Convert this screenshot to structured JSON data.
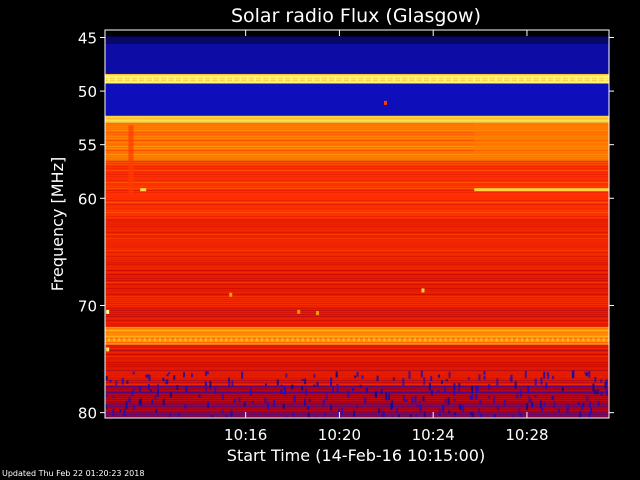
{
  "chart_data": {
    "type": "heatmap",
    "title": "Solar radio Flux (Glasgow)",
    "xlabel": "Start Time (14-Feb-16 10:15:00)",
    "ylabel": "Frequency [MHz]",
    "x_range_minutes": [
      10.0,
      31.5
    ],
    "x_ticks": [
      {
        "value": 16,
        "label": "10:16"
      },
      {
        "value": 20,
        "label": "10:20"
      },
      {
        "value": 24,
        "label": "10:24"
      },
      {
        "value": 28,
        "label": "10:28"
      }
    ],
    "y_range_mhz": [
      44.3,
      80.5
    ],
    "y_ticks": [
      {
        "value": 45,
        "label": "45"
      },
      {
        "value": 50,
        "label": "50"
      },
      {
        "value": 55,
        "label": "55"
      },
      {
        "value": 60,
        "label": "60"
      },
      {
        "value": 70,
        "label": "70"
      },
      {
        "value": 80,
        "label": "80"
      }
    ],
    "colormap": [
      "#000000",
      "#1010d0",
      "#c00000",
      "#ff3000",
      "#ffa000",
      "#ffff80"
    ],
    "frequency_bands": [
      {
        "from": 44.3,
        "to": 44.9,
        "level": 0.0
      },
      {
        "from": 44.9,
        "to": 45.6,
        "level": 0.1
      },
      {
        "from": 45.6,
        "to": 48.4,
        "level": 0.16
      },
      {
        "from": 48.4,
        "to": 49.3,
        "level": 0.96
      },
      {
        "from": 49.3,
        "to": 52.3,
        "level": 0.18
      },
      {
        "from": 52.3,
        "to": 52.9,
        "level": 0.9
      },
      {
        "from": 52.9,
        "to": 56.5,
        "level": 0.72
      },
      {
        "from": 56.5,
        "to": 62.0,
        "level": 0.6
      },
      {
        "from": 62.0,
        "to": 66.0,
        "level": 0.55
      },
      {
        "from": 66.0,
        "to": 72.0,
        "level": 0.52
      },
      {
        "from": 72.0,
        "to": 73.6,
        "level": 0.78
      },
      {
        "from": 73.6,
        "to": 77.5,
        "level": 0.5
      },
      {
        "from": 77.5,
        "to": 80.5,
        "level": 0.35
      }
    ],
    "grid": false,
    "legend": "none"
  },
  "footer": {
    "updated": "Updated Thu Feb 22 01:20:23 2018"
  }
}
